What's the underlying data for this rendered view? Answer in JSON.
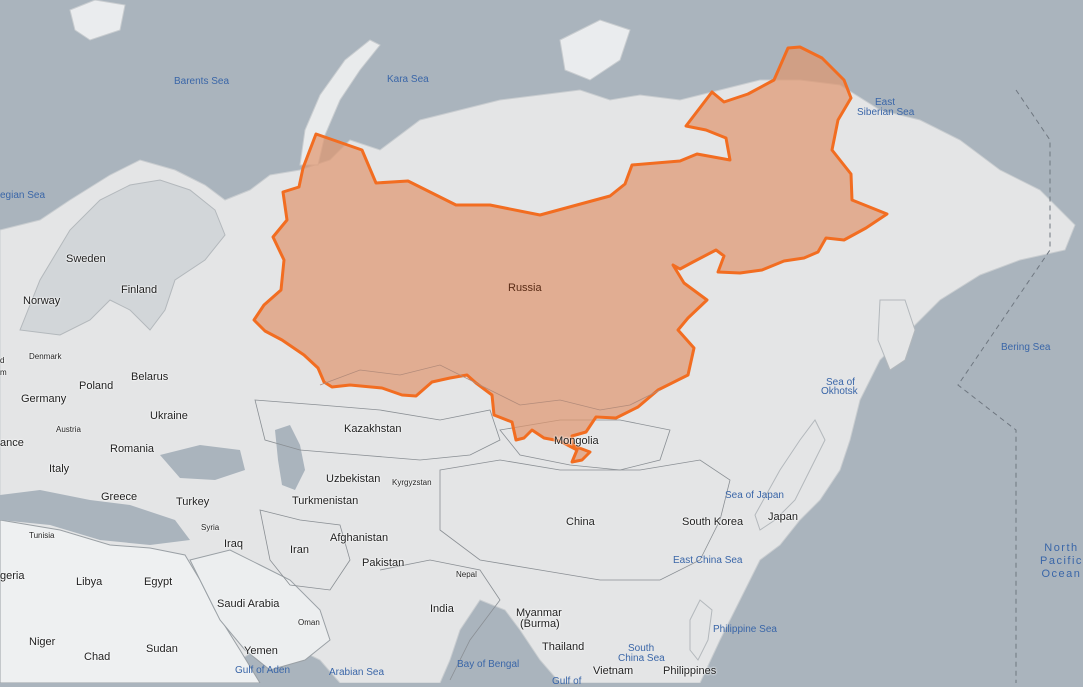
{
  "overlay": {
    "label": "Russia",
    "fill_color": "#e0956d",
    "stroke_color": "#f26d21"
  },
  "colors": {
    "water": "#aab4bd",
    "land": "#e4e5e6",
    "land_dark": "#cdd1d4",
    "border": "#8a8f94",
    "water_label": "#3a66a8"
  },
  "countries": [
    "Sweden",
    "Finland",
    "Norway",
    "Denmark",
    "Poland",
    "Belarus",
    "Germany",
    "Ukraine",
    "Austria",
    "ance",
    "Romania",
    "Italy",
    "Greece",
    "Turkey",
    "Kazakhstan",
    "Mongolia",
    "Uzbekistan",
    "Kyrgyzstan",
    "Turkmenistan",
    "Syria",
    "Iraq",
    "Iran",
    "Afghanistan",
    "Tunisia",
    "Pakistan",
    "China",
    "South Korea",
    "Japan",
    "geria",
    "Libya",
    "Egypt",
    "Saudi Arabia",
    "Oman",
    "Nepal",
    "India",
    "Myanmar",
    "(Burma)",
    "Niger",
    "Chad",
    "Sudan",
    "Yemen",
    "Thailand",
    "Vietnam",
    "Philippines",
    "m",
    "d"
  ],
  "waters": [
    "Barents Sea",
    "Kara Sea",
    "East",
    "Siberian Sea",
    "egian Sea",
    "Bering Sea",
    "Sea of",
    "Okhotsk",
    "Sea of Japan",
    "East China Sea",
    "Philippine Sea",
    "South",
    "China Sea",
    "Bay of Bengal",
    "Arabian Sea",
    "Gulf of Aden",
    "Gulf of"
  ],
  "ocean": [
    "North",
    "Pacific",
    "Ocean"
  ]
}
